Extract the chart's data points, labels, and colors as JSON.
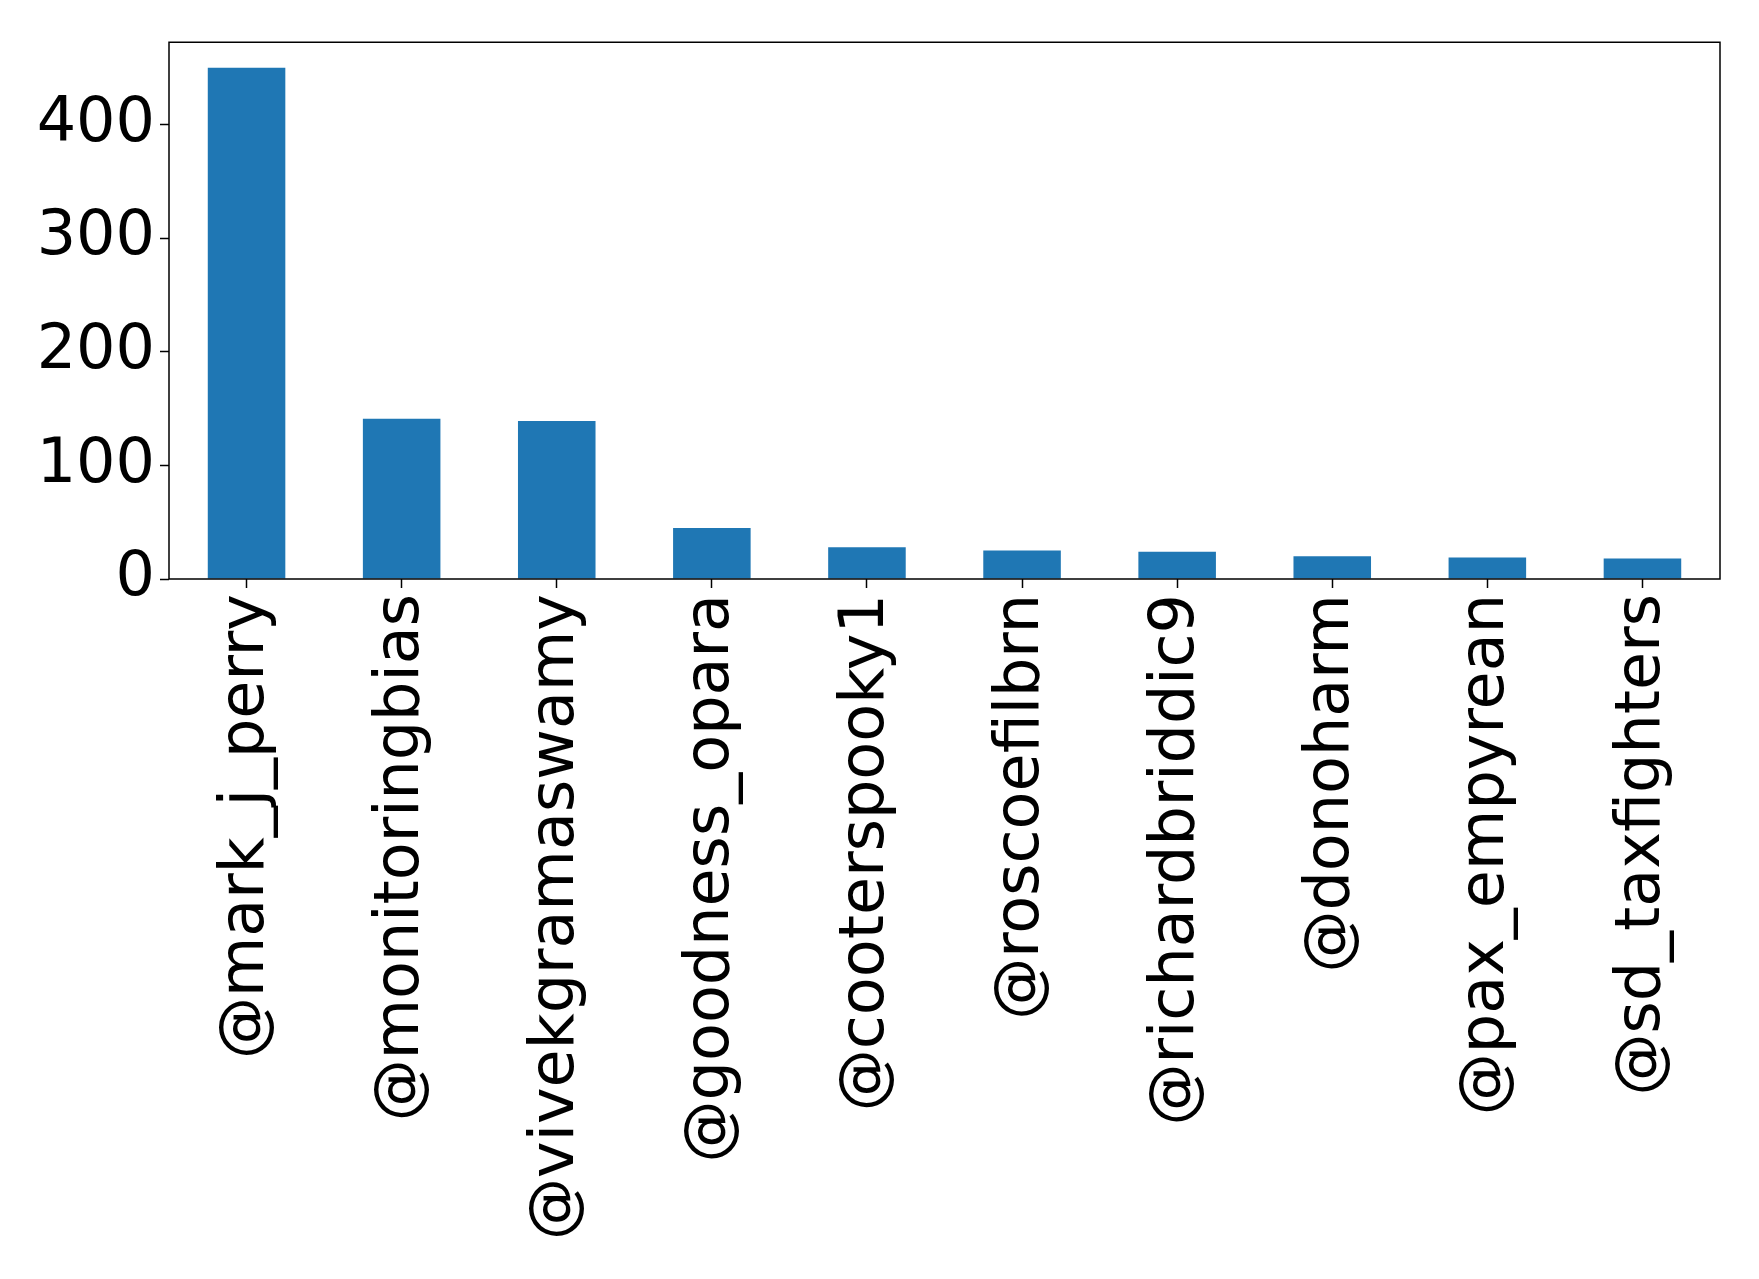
{
  "chart_data": {
    "type": "bar",
    "categories": [
      "@mark_j_perry",
      "@monitoringbias",
      "@vivekgramaswamy",
      "@goodness_opara",
      "@cooterspooky1",
      "@roscoefilbrn",
      "@richardbriddic9",
      "@donoharm",
      "@pax_empyrean",
      "@sd_taxfighters"
    ],
    "values": [
      450,
      141,
      139,
      45,
      28,
      25,
      24,
      20,
      19,
      18
    ],
    "color": "#1f77b4",
    "ylim": [
      0,
      472.5
    ],
    "yticks": [
      0,
      100,
      200,
      300,
      400
    ]
  }
}
